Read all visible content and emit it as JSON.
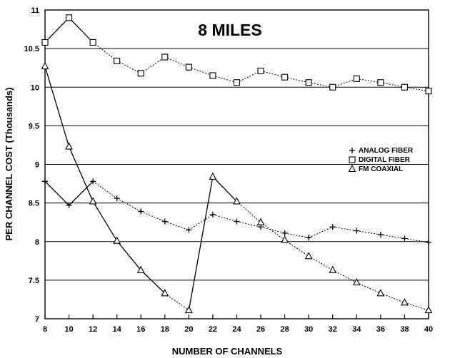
{
  "chart_data": {
    "type": "line",
    "title": "8 MILES",
    "xlabel": "NUMBER OF CHANNELS",
    "ylabel": "PER CHANNEL COST (Thousands)",
    "x": [
      8,
      10,
      12,
      14,
      16,
      18,
      20,
      22,
      24,
      26,
      28,
      30,
      32,
      34,
      36,
      38,
      40
    ],
    "xlim": [
      8,
      40
    ],
    "ylim": [
      7,
      11
    ],
    "x_ticks": [
      "8",
      "10",
      "12",
      "14",
      "16",
      "18",
      "20",
      "22",
      "24",
      "26",
      "28",
      "30",
      "32",
      "34",
      "36",
      "38",
      "40"
    ],
    "y_ticks": [
      {
        "value": 7,
        "label": "7"
      },
      {
        "value": 7.5,
        "label": "7.5"
      },
      {
        "value": 8,
        "label": "8"
      },
      {
        "value": 8.5,
        "label": "8.5"
      },
      {
        "value": 9,
        "label": "9"
      },
      {
        "value": 9.5,
        "label": "9.5"
      },
      {
        "value": 10,
        "label": "10"
      },
      {
        "value": 10.5,
        "label": "10.5"
      },
      {
        "value": 11,
        "label": "11"
      }
    ],
    "grid": "horizontal",
    "legend_position": "right",
    "series": [
      {
        "name": "ANALOG FIBER",
        "marker": "plus",
        "values": [
          8.78,
          8.47,
          8.78,
          8.56,
          8.39,
          8.26,
          8.15,
          8.35,
          8.26,
          8.19,
          8.11,
          8.05,
          8.19,
          8.14,
          8.09,
          8.04,
          7.99
        ]
      },
      {
        "name": "DIGITAL FIBER",
        "marker": "square",
        "values": [
          10.58,
          10.9,
          10.58,
          10.34,
          10.18,
          10.39,
          10.26,
          10.15,
          10.06,
          10.21,
          10.13,
          10.06,
          10.0,
          10.11,
          10.06,
          10.0,
          9.95
        ]
      },
      {
        "name": "FM COAXIAL",
        "marker": "triangle",
        "values": [
          10.27,
          9.23,
          8.52,
          8.01,
          7.63,
          7.33,
          7.11,
          8.84,
          8.52,
          8.25,
          8.02,
          7.81,
          7.63,
          7.47,
          7.33,
          7.21,
          7.11
        ]
      }
    ]
  }
}
